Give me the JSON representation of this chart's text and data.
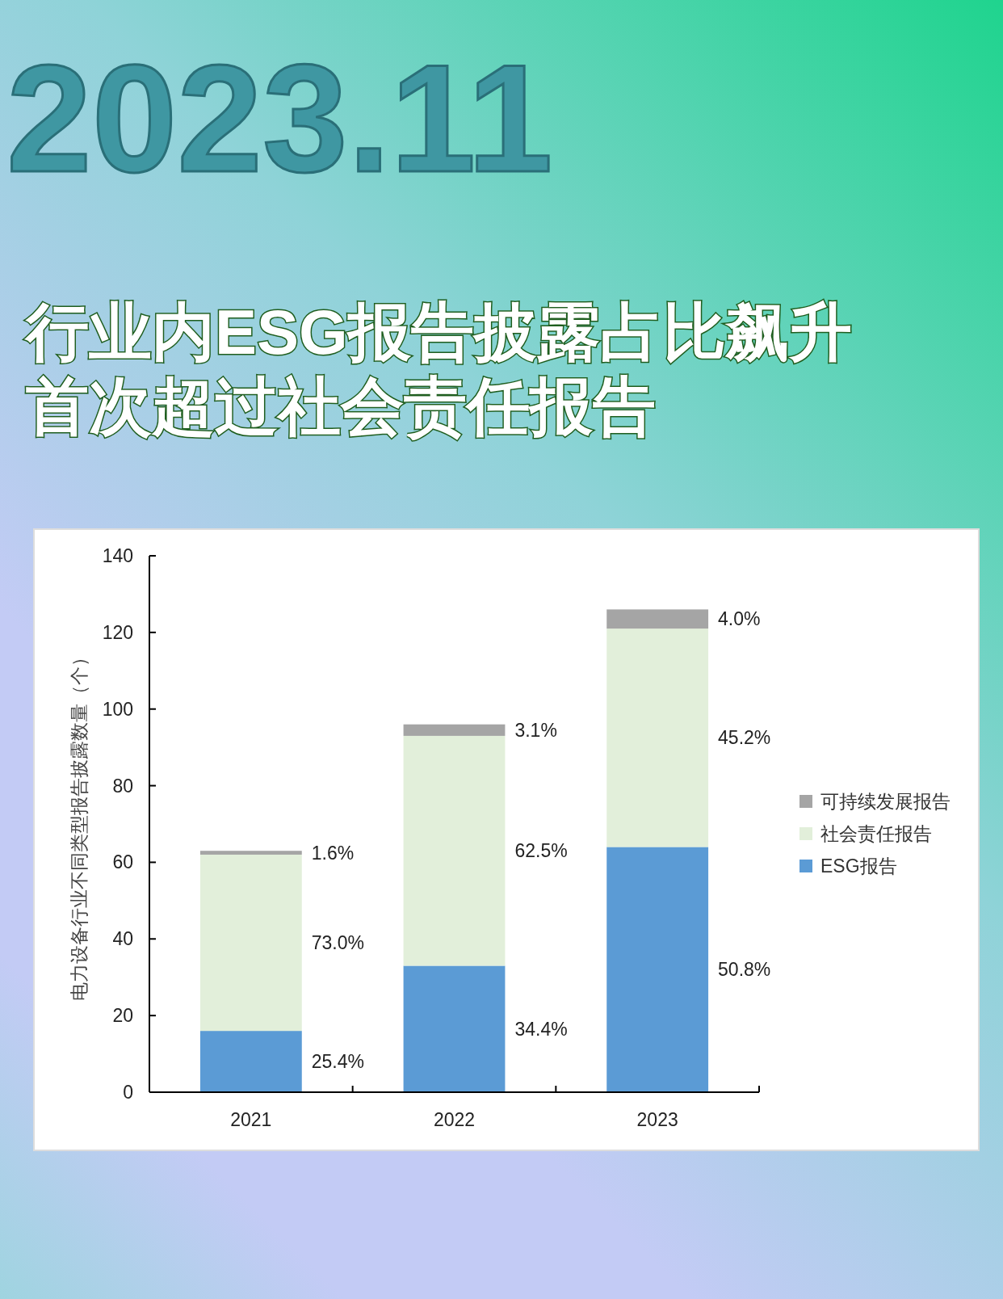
{
  "chart_data": {
    "type": "bar",
    "subtitle": "2023.11",
    "title": "行业内ESG报告披露占比飙升首次超过社会责任报告",
    "ylabel": "电力设备行业不同类型报告披露数量（个）",
    "categories": [
      "2021",
      "2022",
      "2023"
    ],
    "stacked": true,
    "legend": "right",
    "ylim": [
      0,
      140
    ],
    "yticks": [
      0,
      20,
      40,
      60,
      80,
      100,
      120,
      140
    ],
    "series": [
      {
        "name": "ESG报告",
        "color": "#5b9bd5",
        "values": [
          16,
          33,
          64
        ]
      },
      {
        "name": "社会责任报告",
        "color": "#e2efda",
        "values": [
          46,
          60,
          57
        ]
      },
      {
        "name": "可持续发展报告",
        "color": "#a5a5a5",
        "values": [
          1,
          3,
          5
        ]
      }
    ],
    "annotations": [
      "25.4%",
      "73.0%",
      "1.6%",
      "34.4%",
      "62.5%",
      "3.1%",
      "50.8%",
      "45.2%",
      "4.0%"
    ]
  }
}
